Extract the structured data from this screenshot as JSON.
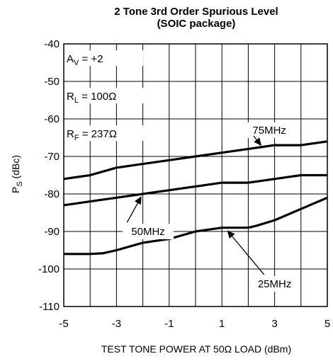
{
  "chart_data": {
    "type": "line",
    "title": "2 Tone 3rd Order Spurious Level",
    "subtitle": "(SOIC package)",
    "xlabel": "TEST TONE POWER AT 50Ω LOAD (dBm)",
    "ylabel": {
      "main": "P",
      "sub": "S",
      "unit": "(dBc)"
    },
    "xlim": [
      -5,
      5
    ],
    "ylim": [
      -110,
      -40
    ],
    "x_ticks": [
      "-5",
      "-3",
      "-1",
      "1",
      "3",
      "5"
    ],
    "y_ticks": [
      "-40",
      "-50",
      "-60",
      "-70",
      "-80",
      "-90",
      "-100",
      "-110"
    ],
    "grid": true,
    "conditions": [
      {
        "main": "A",
        "sub": "V",
        "rest": " = +2"
      },
      {
        "main": "R",
        "sub": "L",
        "rest": " = 100Ω"
      },
      {
        "main": "R",
        "sub": "F",
        "rest": " = 237Ω"
      }
    ],
    "series": [
      {
        "name": "75MHz",
        "x": [
          -5,
          -4,
          -3.5,
          -3,
          -2,
          -1,
          0,
          1,
          2,
          2.5,
          3,
          4,
          5
        ],
        "y": [
          -76,
          -75,
          -74,
          -73,
          -72,
          -71,
          -70,
          -69,
          -68,
          -67.5,
          -67,
          -67,
          -66
        ]
      },
      {
        "name": "50MHz",
        "x": [
          -5,
          -4,
          -3,
          -2,
          -1,
          0,
          1,
          2,
          3,
          4,
          5
        ],
        "y": [
          -83,
          -82,
          -81,
          -80,
          -79,
          -78,
          -77,
          -77,
          -76,
          -75,
          -75
        ]
      },
      {
        "name": "25MHz",
        "x": [
          -5,
          -4,
          -3.5,
          -3,
          -2,
          -1,
          0,
          0.5,
          1,
          2,
          2.3,
          3,
          4,
          5
        ],
        "y": [
          -96,
          -96,
          -95.8,
          -95,
          -93,
          -92,
          -90,
          -89.5,
          -89,
          -89,
          -88.5,
          -87,
          -84,
          -81
        ]
      }
    ]
  }
}
